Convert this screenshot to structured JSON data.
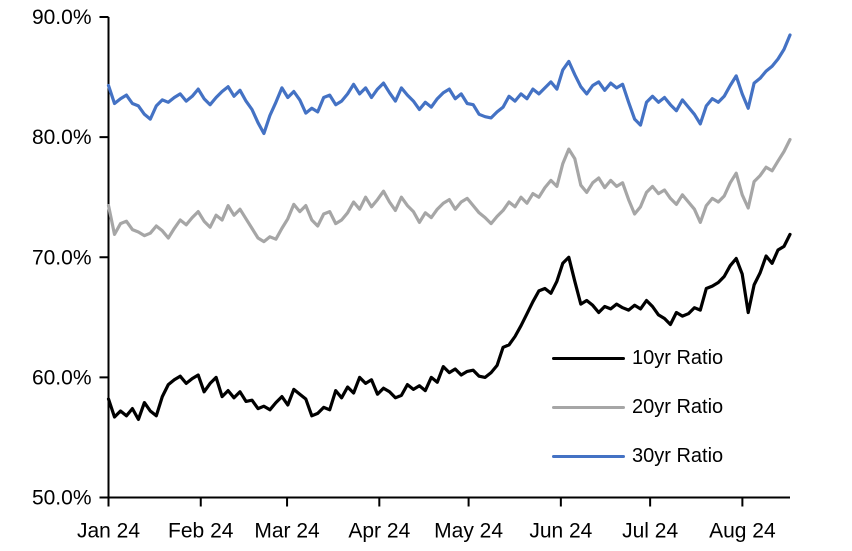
{
  "chart": {
    "background_color": "#FFFFFF",
    "axis_color": "#000000",
    "tick_label_color": "#000000"
  },
  "chart_data": {
    "type": "line",
    "title": "",
    "xlabel": "",
    "ylabel": "",
    "ylim": [
      50,
      90
    ],
    "grid": false,
    "legend_position": "inside-lower-right",
    "x_span_days": 229,
    "yticks": [
      {
        "value": 90,
        "label": "90.0%"
      },
      {
        "value": 80,
        "label": "80.0%"
      },
      {
        "value": 70,
        "label": "70.0%"
      },
      {
        "value": 60,
        "label": "60.0%"
      },
      {
        "value": 50,
        "label": "50.0%"
      }
    ],
    "xticks": [
      {
        "day": 0,
        "label": "Jan 24"
      },
      {
        "day": 31,
        "label": "Feb 24"
      },
      {
        "day": 60,
        "label": "Mar 24"
      },
      {
        "day": 91,
        "label": "Apr 24"
      },
      {
        "day": 121,
        "label": "May 24"
      },
      {
        "day": 152,
        "label": "Jun 24"
      },
      {
        "day": 182,
        "label": "Jul 24"
      },
      {
        "day": 213,
        "label": "Aug 24"
      }
    ],
    "series": [
      {
        "name": "10yr Ratio",
        "color": "#000000",
        "values": [
          58.2,
          56.7,
          57.2,
          56.8,
          57.4,
          56.5,
          57.9,
          57.2,
          56.8,
          58.4,
          59.4,
          59.8,
          60.1,
          59.5,
          59.9,
          60.2,
          58.8,
          59.5,
          60.0,
          58.4,
          58.9,
          58.3,
          58.8,
          58.0,
          58.1,
          57.4,
          57.6,
          57.3,
          57.9,
          58.4,
          57.7,
          59.0,
          58.6,
          58.2,
          56.8,
          57.0,
          57.5,
          57.3,
          58.9,
          58.3,
          59.2,
          58.7,
          60.0,
          59.5,
          59.8,
          58.6,
          59.1,
          58.8,
          58.3,
          58.5,
          59.4,
          59.0,
          59.3,
          58.9,
          60.0,
          59.6,
          60.9,
          60.4,
          60.7,
          60.2,
          60.5,
          60.6,
          60.1,
          60.0,
          60.4,
          61.0,
          62.5,
          62.7,
          63.4,
          64.3,
          65.3,
          66.3,
          67.2,
          67.4,
          67.0,
          68.0,
          69.5,
          70.0,
          68.0,
          66.1,
          66.4,
          66.0,
          65.4,
          65.9,
          65.7,
          66.1,
          65.8,
          65.6,
          66.0,
          65.7,
          66.4,
          65.9,
          65.2,
          64.9,
          64.4,
          65.4,
          65.1,
          65.3,
          65.8,
          65.6,
          67.4,
          67.6,
          67.9,
          68.4,
          69.3,
          69.9,
          68.6,
          65.4,
          67.7,
          68.7,
          70.1,
          69.5,
          70.6,
          70.9,
          71.9
        ]
      },
      {
        "name": "20yr Ratio",
        "color": "#A6A6A6",
        "values": [
          74.3,
          71.9,
          72.8,
          73.0,
          72.3,
          72.1,
          71.8,
          72.0,
          72.6,
          72.2,
          71.6,
          72.4,
          73.1,
          72.7,
          73.3,
          73.8,
          73.0,
          72.5,
          73.5,
          73.1,
          74.3,
          73.5,
          74.0,
          73.2,
          72.4,
          71.6,
          71.3,
          71.7,
          71.5,
          72.4,
          73.2,
          74.4,
          73.8,
          74.3,
          73.1,
          72.6,
          73.6,
          73.8,
          72.8,
          73.1,
          73.7,
          74.6,
          74.0,
          75.0,
          74.2,
          74.8,
          75.5,
          74.6,
          73.9,
          75.0,
          74.3,
          73.8,
          72.9,
          73.7,
          73.3,
          74.0,
          74.5,
          74.8,
          74.0,
          74.6,
          74.9,
          74.3,
          73.7,
          73.3,
          72.8,
          73.4,
          73.9,
          74.6,
          74.2,
          75.0,
          74.5,
          75.3,
          75.0,
          75.8,
          76.4,
          75.9,
          77.8,
          79.0,
          78.2,
          76.0,
          75.4,
          76.2,
          76.6,
          75.8,
          76.4,
          75.9,
          76.2,
          74.8,
          73.6,
          74.2,
          75.4,
          75.9,
          75.3,
          75.6,
          74.9,
          74.4,
          75.2,
          74.6,
          74.0,
          72.9,
          74.3,
          74.9,
          74.6,
          75.1,
          76.2,
          77.0,
          75.2,
          74.1,
          76.3,
          76.8,
          77.5,
          77.2,
          78.0,
          78.8,
          79.8
        ]
      },
      {
        "name": "30yr Ratio",
        "color": "#4472C4",
        "values": [
          84.3,
          82.8,
          83.2,
          83.5,
          82.8,
          82.6,
          81.9,
          81.5,
          82.6,
          83.1,
          82.9,
          83.3,
          83.6,
          83.0,
          83.4,
          84.0,
          83.2,
          82.7,
          83.3,
          83.8,
          84.2,
          83.4,
          83.9,
          83.0,
          82.3,
          81.2,
          80.3,
          81.8,
          82.9,
          84.1,
          83.3,
          83.8,
          83.1,
          82.0,
          82.4,
          82.1,
          83.3,
          83.5,
          82.7,
          83.0,
          83.6,
          84.4,
          83.6,
          84.1,
          83.3,
          84.0,
          84.5,
          83.7,
          83.0,
          84.1,
          83.5,
          83.0,
          82.3,
          82.9,
          82.5,
          83.2,
          83.7,
          84.0,
          83.2,
          83.6,
          82.8,
          82.7,
          81.9,
          81.7,
          81.6,
          82.1,
          82.5,
          83.4,
          83.0,
          83.6,
          83.2,
          84.0,
          83.6,
          84.1,
          84.6,
          84.0,
          85.6,
          86.3,
          85.2,
          84.2,
          83.6,
          84.3,
          84.6,
          83.9,
          84.5,
          84.1,
          84.4,
          82.9,
          81.5,
          81.0,
          82.9,
          83.4,
          82.9,
          83.3,
          82.7,
          82.2,
          83.1,
          82.5,
          81.9,
          81.1,
          82.6,
          83.2,
          82.9,
          83.4,
          84.3,
          85.1,
          83.6,
          82.4,
          84.5,
          84.9,
          85.5,
          85.9,
          86.5,
          87.3,
          88.5
        ]
      }
    ]
  }
}
